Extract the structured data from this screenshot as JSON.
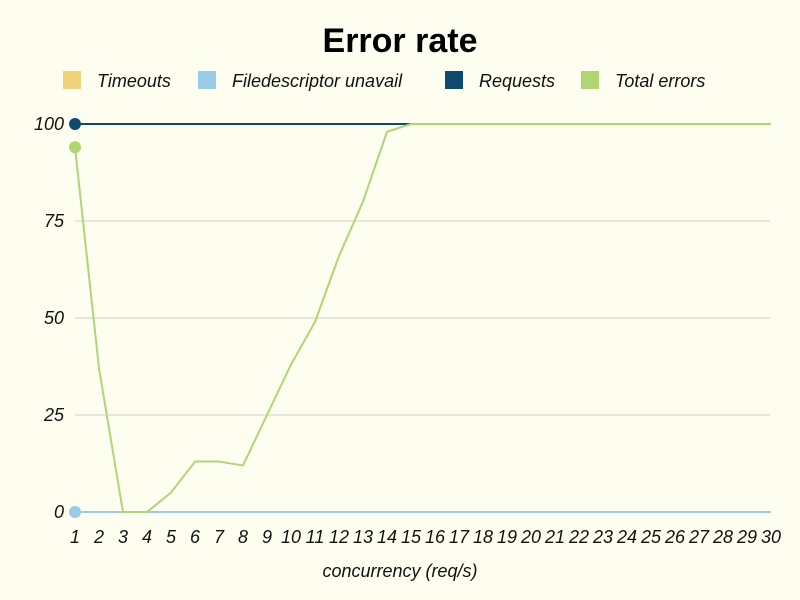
{
  "chart_data": {
    "type": "line",
    "title": "Error rate",
    "xlabel": "concurrency (req/s)",
    "ylabel": "",
    "categories": [
      "1",
      "2",
      "3",
      "4",
      "5",
      "6",
      "7",
      "8",
      "9",
      "10",
      "11",
      "12",
      "13",
      "14",
      "15",
      "16",
      "17",
      "18",
      "19",
      "20",
      "21",
      "22",
      "23",
      "24",
      "25",
      "26",
      "27",
      "28",
      "29",
      "30"
    ],
    "y_ticks": [
      "0",
      "25",
      "50",
      "75",
      "100"
    ],
    "ylim": [
      0,
      100
    ],
    "grid": true,
    "legend_position": "top",
    "series": [
      {
        "name": "Timeouts",
        "color": "#f0d27a",
        "values": [
          0,
          0,
          0,
          0,
          0,
          0,
          0,
          0,
          0,
          0,
          0,
          0,
          0,
          0,
          0,
          0,
          0,
          0,
          0,
          0,
          0,
          0,
          0,
          0,
          0,
          0,
          0,
          0,
          0,
          0
        ]
      },
      {
        "name": "Filedescriptor unavail",
        "color": "#9ccbea",
        "values": [
          0,
          0,
          0,
          0,
          0,
          0,
          0,
          0,
          0,
          0,
          0,
          0,
          0,
          0,
          0,
          0,
          0,
          0,
          0,
          0,
          0,
          0,
          0,
          0,
          0,
          0,
          0,
          0,
          0,
          0
        ]
      },
      {
        "name": "Requests",
        "color": "#0d4a6e",
        "values": [
          100,
          100,
          100,
          100,
          100,
          100,
          100,
          100,
          100,
          100,
          100,
          100,
          100,
          100,
          100,
          100,
          100,
          100,
          100,
          100,
          100,
          100,
          100,
          100,
          100,
          100,
          100,
          100,
          100,
          100
        ]
      },
      {
        "name": "Total errors",
        "color": "#afd575",
        "values": [
          94,
          37,
          0,
          0,
          5,
          13,
          13,
          12,
          25,
          38,
          49,
          66,
          80,
          98,
          100,
          100,
          100,
          100,
          100,
          100,
          100,
          100,
          100,
          100,
          100,
          100,
          100,
          100,
          100,
          100
        ]
      }
    ]
  }
}
